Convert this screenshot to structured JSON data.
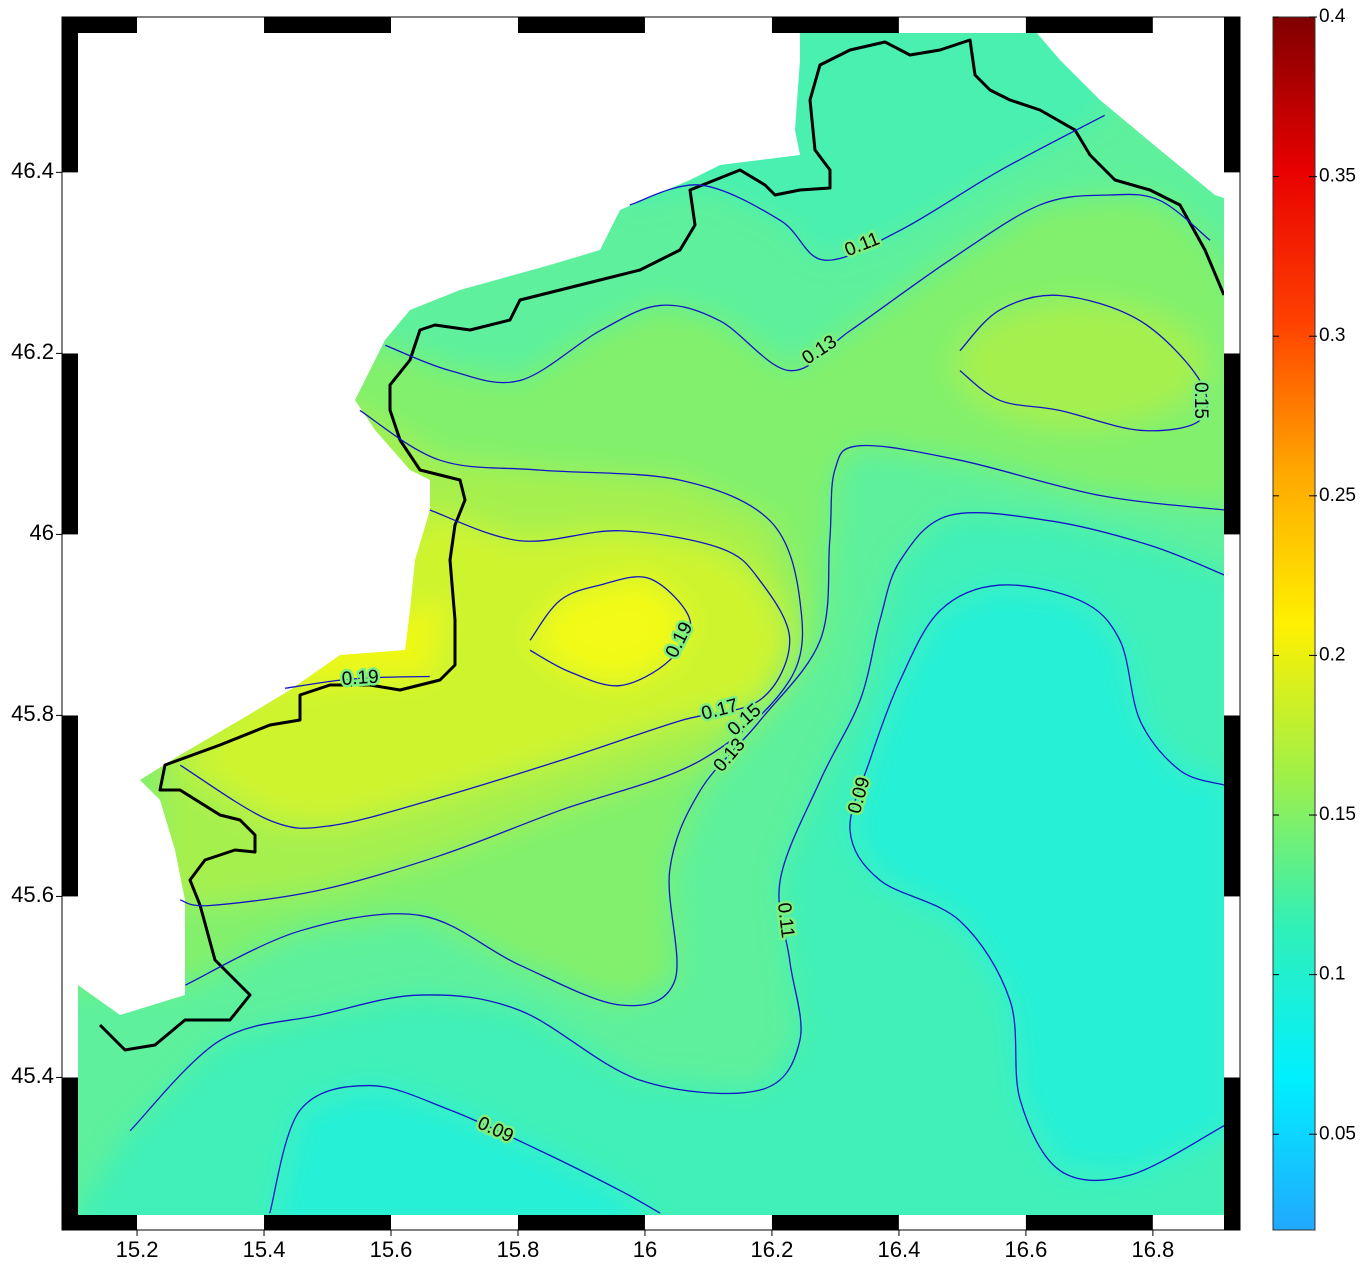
{
  "chart_data": {
    "type": "contour",
    "xlim": [
      15.107,
      16.912
    ],
    "ylim": [
      45.248,
      46.554
    ],
    "xticks": [
      15.2,
      15.4,
      15.6,
      15.8,
      16,
      16.2,
      16.4,
      16.6,
      16.8
    ],
    "yticks": [
      45.4,
      45.6,
      45.8,
      46,
      46.2,
      46.4
    ],
    "line_color": "#1414c8",
    "colorbar": {
      "lim": [
        0.02,
        0.4
      ],
      "ticks": [
        0.05,
        0.1,
        0.15,
        0.2,
        0.25,
        0.3,
        0.35,
        0.4
      ],
      "colors": [
        "#20a8ff",
        "#00f0ff",
        "#30f0b8",
        "#a0f048",
        "#fff000",
        "#ffa800",
        "#ff4000",
        "#e80000",
        "#800000"
      ]
    },
    "contours": [
      {
        "level": 0.19,
        "lon": [
          15.819,
          15.866,
          15.929,
          16.008,
          16.071,
          16.039,
          15.961,
          15.882,
          15.819
        ],
        "lat": [
          45.883,
          45.927,
          45.944,
          45.951,
          45.905,
          45.861,
          45.833,
          45.848,
          45.872
        ]
      },
      {
        "level": 0.19,
        "lon": [
          15.433,
          15.52,
          15.583,
          15.661
        ],
        "lat": [
          45.83,
          45.839,
          45.842,
          45.843
        ]
      },
      {
        "level": 0.17,
        "lon": [
          15.661,
          15.803,
          15.961,
          16.118,
          16.181,
          16.228,
          16.181,
          16.055,
          15.866,
          15.661,
          15.504,
          15.409,
          15.268
        ],
        "lat": [
          46.027,
          45.993,
          46.004,
          45.985,
          45.949,
          45.883,
          45.817,
          45.794,
          45.75,
          45.706,
          45.678,
          45.684,
          45.745
        ]
      },
      {
        "level": 0.15,
        "lon": [
          15.551,
          15.677,
          15.835,
          16.055,
          16.197,
          16.244,
          16.228,
          16.087,
          15.866,
          15.677,
          15.488,
          15.315,
          15.268
        ],
        "lat": [
          46.137,
          46.082,
          46.071,
          46.06,
          46.015,
          45.927,
          45.839,
          45.75,
          45.695,
          45.645,
          45.607,
          45.59,
          45.596
        ]
      },
      {
        "level": 0.15,
        "lon": [
          16.496,
          16.559,
          16.653,
          16.78,
          16.874,
          16.874,
          16.78,
          16.653,
          16.559,
          16.496
        ],
        "lat": [
          46.203,
          46.248,
          46.264,
          46.236,
          46.17,
          46.126,
          46.115,
          46.137,
          46.148,
          46.181
        ]
      },
      {
        "level": 0.13,
        "lon": [
          15.591,
          15.693,
          15.803,
          15.929,
          16.024,
          16.118,
          16.228,
          16.323,
          16.48,
          16.622,
          16.732,
          16.811,
          16.89
        ],
        "lat": [
          46.209,
          46.181,
          46.17,
          46.225,
          46.253,
          46.236,
          46.181,
          46.225,
          46.303,
          46.364,
          46.375,
          46.369,
          46.325
        ]
      },
      {
        "level": 0.13,
        "lon": [
          16.913,
          16.717,
          16.496,
          16.339,
          16.299,
          16.291,
          16.276,
          16.181,
          16.087,
          16.039,
          16.047,
          15.961,
          15.803,
          15.646,
          15.457,
          15.276
        ],
        "lat": [
          46.027,
          46.043,
          46.082,
          46.098,
          46.071,
          45.993,
          45.883,
          45.794,
          45.717,
          45.629,
          45.507,
          45.48,
          45.524,
          45.579,
          45.562,
          45.502
        ]
      },
      {
        "level": 0.11,
        "lon": [
          15.976,
          16.087,
          16.213,
          16.283,
          16.402,
          16.559,
          16.724
        ],
        "lat": [
          46.364,
          46.386,
          46.347,
          46.303,
          46.336,
          46.402,
          46.463
        ]
      },
      {
        "level": 0.11,
        "lon": [
          16.913,
          16.795,
          16.638,
          16.48,
          16.402,
          16.37,
          16.339,
          16.276,
          16.213,
          16.228,
          16.244,
          16.181,
          15.992,
          15.803,
          15.646,
          15.488,
          15.331,
          15.189
        ],
        "lat": [
          45.955,
          45.988,
          46.015,
          46.021,
          45.971,
          45.905,
          45.817,
          45.728,
          45.618,
          45.529,
          45.441,
          45.386,
          45.397,
          45.474,
          45.491,
          45.469,
          45.441,
          45.341
        ]
      },
      {
        "level": 0.09,
        "lon": [
          16.913,
          16.843,
          16.78,
          16.748,
          16.685,
          16.559,
          16.465,
          16.402,
          16.354,
          16.323,
          16.37,
          16.496,
          16.575,
          16.591,
          16.654,
          16.764,
          16.913
        ],
        "lat": [
          45.723,
          45.739,
          45.794,
          45.883,
          45.927,
          45.944,
          45.916,
          45.839,
          45.75,
          45.673,
          45.618,
          45.573,
          45.485,
          45.375,
          45.297,
          45.292,
          45.347
        ]
      },
      {
        "level": 0.09,
        "lon": [
          15.409,
          15.457,
          15.567,
          15.693,
          15.835,
          15.961,
          16.024
        ],
        "lat": [
          45.25,
          45.364,
          45.391,
          45.364,
          45.319,
          45.275,
          45.25
        ]
      }
    ]
  }
}
